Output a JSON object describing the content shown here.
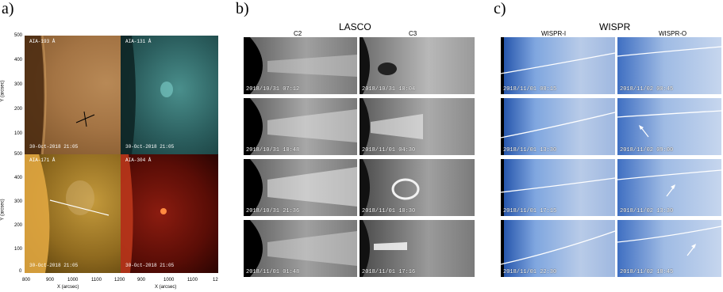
{
  "panel_a": {
    "letter": "a)",
    "images": [
      {
        "channel": "AIA-193 Å",
        "date": "30-Oct-2018 21:05"
      },
      {
        "channel": "AIA-131 Å",
        "date": "30-Oct-2018 21:05"
      },
      {
        "channel": "AIA-171 Å",
        "date": "30-Oct-2018 21:05"
      },
      {
        "channel": "AIA-304 Å",
        "date": "30-Oct-2018 21:05"
      }
    ],
    "y_ticks_top": [
      "500",
      "400",
      "300",
      "200",
      "100"
    ],
    "y_ticks_bottom": [
      "500",
      "400",
      "300",
      "200",
      "100",
      "0"
    ],
    "y_label": "Y (arcsec)",
    "x_ticks": [
      "800",
      "900",
      "1000",
      "1100",
      "1200",
      "900",
      "1000",
      "1100",
      "12"
    ],
    "x_label": "X (arcsec)"
  },
  "panel_b": {
    "letter": "b)",
    "title": "LASCO",
    "col_c2": "C2",
    "col_c3": "C3",
    "c2": [
      "2018/10/31 07:12",
      "2018/10/31 10:48",
      "2018/10/31 21:36",
      "2018/11/01 01:48"
    ],
    "c3": [
      "2018/10/31 10:04",
      "2018/11/01 04:30",
      "2018/11/01 10:30",
      "2018/11/01 17:16"
    ]
  },
  "panel_c": {
    "letter": "c)",
    "title": "WISPR",
    "col_i": "WISPR-I",
    "col_o": "WISPR-O",
    "wi": [
      "2018/11/01 08:15",
      "2018/11/01 13:30",
      "2018/11/01 17:15",
      "2018/11/01 22:30"
    ],
    "wo": [
      "2018/11/02 00:45",
      "2018/11/02 09:00",
      "2018/11/02 13:30",
      "2018/11/02 18:45"
    ]
  }
}
